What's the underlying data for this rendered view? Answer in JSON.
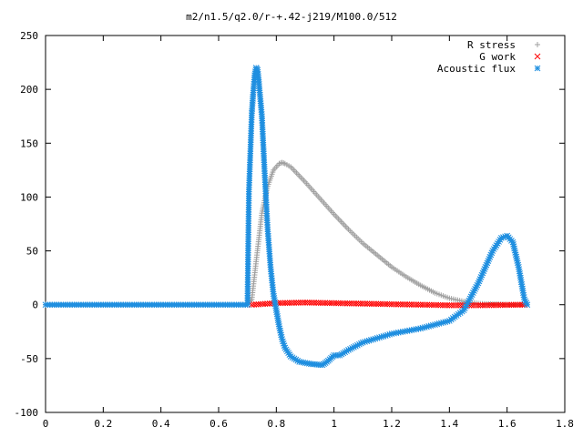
{
  "chart_data": {
    "type": "scatter",
    "title": "m2/n1.5/q2.0/r-+.42-j219/M100.0/512",
    "xlabel": "",
    "ylabel": "",
    "xlim": [
      0,
      1.8
    ],
    "ylim": [
      -100,
      250
    ],
    "x_ticks": [
      "0",
      "0.2",
      "0.4",
      "0.6",
      "0.8",
      "1",
      "1.2",
      "1.4",
      "1.6",
      "1.8"
    ],
    "y_ticks": [
      "-100",
      "-50",
      "0",
      "50",
      "100",
      "150",
      "200",
      "250"
    ],
    "grid": false,
    "legend_position": "top-right",
    "series": [
      {
        "name": "R stress",
        "marker": "plus",
        "color": "#a0a0a0",
        "x": [
          0,
          0.1,
          0.2,
          0.3,
          0.4,
          0.5,
          0.6,
          0.7,
          0.715,
          0.73,
          0.75,
          0.77,
          0.79,
          0.81,
          0.82,
          0.83,
          0.85,
          0.9,
          0.95,
          1.0,
          1.05,
          1.1,
          1.15,
          1.2,
          1.25,
          1.3,
          1.35,
          1.4,
          1.45,
          1.5,
          1.55,
          1.6,
          1.66
        ],
        "y": [
          0,
          0,
          0,
          0,
          0,
          0,
          0,
          0,
          5,
          40,
          85,
          110,
          125,
          131,
          132,
          131,
          128,
          114,
          99,
          84,
          70,
          57,
          46,
          35,
          26,
          18,
          11,
          6,
          3,
          1,
          0.5,
          0.2,
          0
        ]
      },
      {
        "name": "G work",
        "marker": "x",
        "color": "#ff0000",
        "x": [
          0.715,
          0.8,
          0.9,
          1.0,
          1.1,
          1.2,
          1.3,
          1.4,
          1.5,
          1.6,
          1.66
        ],
        "y": [
          0,
          1.5,
          2,
          1.5,
          1,
          0.5,
          0,
          -0.5,
          -0.5,
          -0.2,
          0
        ]
      },
      {
        "name": "Acoustic flux",
        "marker": "star",
        "color": "#1f8fe0",
        "x": [
          0,
          0.1,
          0.2,
          0.3,
          0.4,
          0.5,
          0.6,
          0.7,
          0.705,
          0.715,
          0.72,
          0.725,
          0.73,
          0.735,
          0.74,
          0.75,
          0.76,
          0.77,
          0.78,
          0.79,
          0.8,
          0.81,
          0.82,
          0.83,
          0.85,
          0.88,
          0.92,
          0.96,
          0.98,
          1.0,
          1.02,
          1.05,
          1.1,
          1.2,
          1.3,
          1.4,
          1.45,
          1.5,
          1.55,
          1.58,
          1.6,
          1.62,
          1.64,
          1.66,
          1.67
        ],
        "y": [
          0,
          0,
          0,
          0,
          0,
          0,
          0,
          0,
          105,
          178,
          197,
          213,
          220,
          218,
          205,
          175,
          120,
          70,
          35,
          10,
          -5,
          -20,
          -32,
          -40,
          -48,
          -53,
          -55,
          -56,
          -52,
          -47,
          -47,
          -42,
          -35,
          -27,
          -22,
          -15,
          -5,
          20,
          50,
          62,
          64,
          58,
          35,
          5,
          0
        ]
      }
    ]
  }
}
